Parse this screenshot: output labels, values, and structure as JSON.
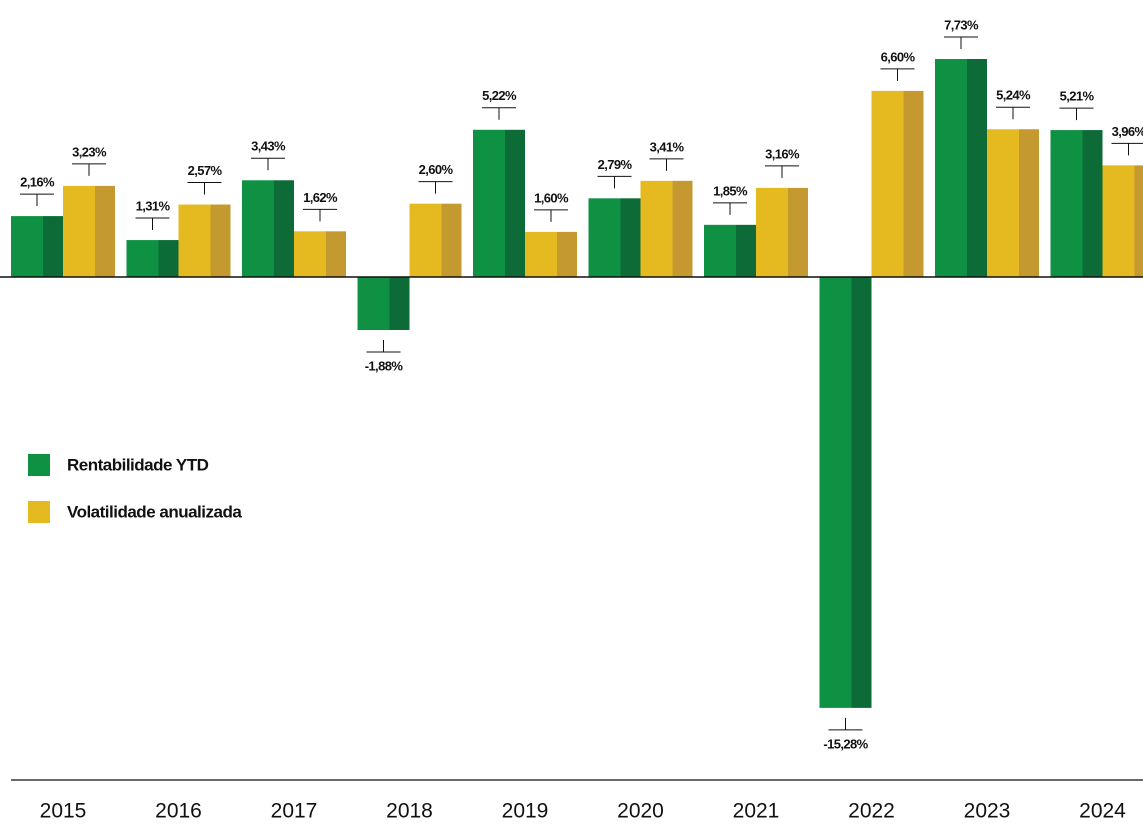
{
  "chart_data": {
    "type": "bar",
    "categories": [
      "2015",
      "2016",
      "2017",
      "2018",
      "2019",
      "2020",
      "2021",
      "2022",
      "2023",
      "2024"
    ],
    "series": [
      {
        "name": "Rentabilidade YTD",
        "color": "#0f9143",
        "shade": "#0c6b36",
        "values": [
          2.16,
          1.31,
          3.43,
          -1.88,
          5.22,
          2.79,
          1.85,
          -15.28,
          7.73,
          5.21
        ],
        "value_labels": [
          "2,16%",
          "1,31%",
          "3,43%",
          "-1,88%",
          "5,22%",
          "2,79%",
          "1,85%",
          "-15,28%",
          "7,73%",
          "5,21%"
        ]
      },
      {
        "name": "Volatilidade anualizada",
        "color": "#e5b920",
        "shade": "#c49a30",
        "values": [
          3.23,
          2.57,
          1.62,
          2.6,
          1.6,
          3.41,
          3.16,
          6.6,
          5.24,
          3.96
        ],
        "value_labels": [
          "3,23%",
          "2,57%",
          "1,62%",
          "2,60%",
          "1,60%",
          "3,41%",
          "3,16%",
          "6,60%",
          "5,24%",
          "3,96%"
        ]
      }
    ],
    "ylim": [
      -16,
      8
    ],
    "legend": "left"
  }
}
